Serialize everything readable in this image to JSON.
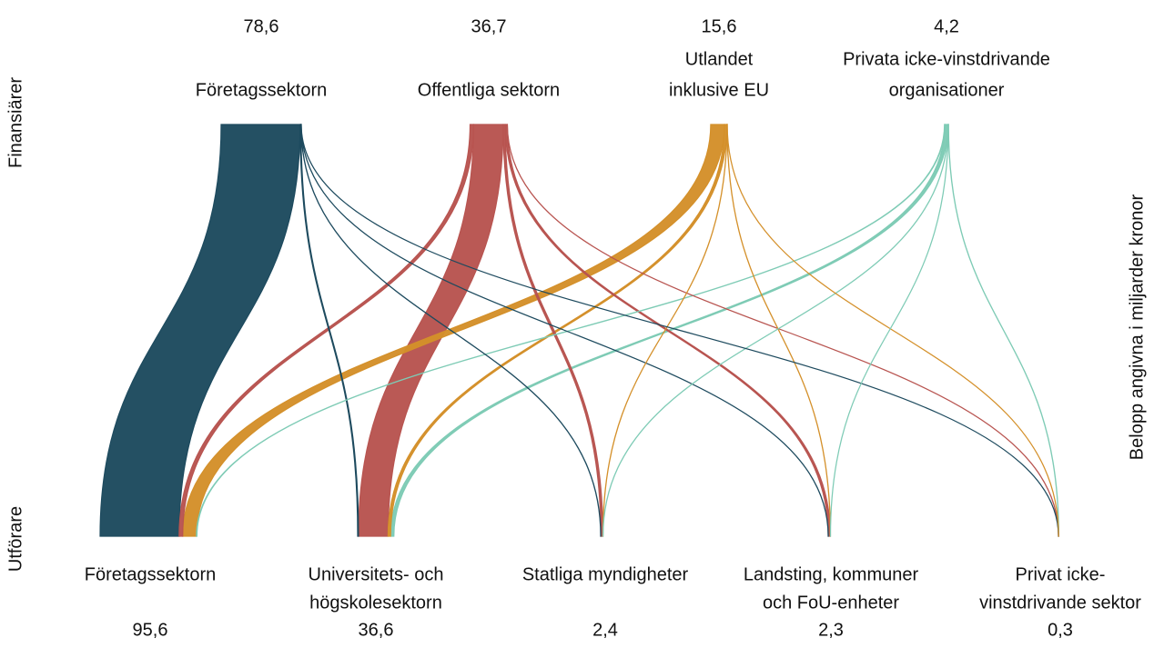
{
  "chart_data": {
    "type": "sankey",
    "left_label_top": "Finansiärer",
    "left_label_bottom": "Utförare",
    "right_label": "Belopp angivna i miljarder kronor",
    "sources": [
      {
        "name": [
          "Företagssektorn"
        ],
        "total": {
          "value": 78.6,
          "label": "78,6"
        },
        "color": "#1d4a5e"
      },
      {
        "name": [
          "Offentliga sektorn"
        ],
        "total": {
          "value": 36.7,
          "label": "36,7"
        },
        "color": "#b85450"
      },
      {
        "name": [
          "Utlandet",
          "inklusive EU"
        ],
        "total": {
          "value": 15.6,
          "label": "15,6"
        },
        "color": "#d4902a"
      },
      {
        "name": [
          "Privata icke-vinstdrivande",
          "organisationer"
        ],
        "total": {
          "value": 4.2,
          "label": "4,2"
        },
        "color": "#7ecbb5"
      }
    ],
    "targets": [
      {
        "name": [
          "Företagssektorn"
        ],
        "total": {
          "value": 95.6,
          "label": "95,6"
        }
      },
      {
        "name": [
          "Universitets- och",
          "högskolesektorn"
        ],
        "total": {
          "value": 36.6,
          "label": "36,6"
        }
      },
      {
        "name": [
          "Statliga myndigheter"
        ],
        "total": {
          "value": 2.4,
          "label": "2,4"
        }
      },
      {
        "name": [
          "Landsting, kommuner",
          "och FoU-enheter"
        ],
        "total": {
          "value": 2.3,
          "label": "2,3"
        }
      },
      {
        "name": [
          "Privat icke-",
          "vinstdrivande sektor"
        ],
        "total": {
          "value": 0.3,
          "label": "0,3"
        }
      }
    ],
    "flows": [
      {
        "source": 0,
        "target": 0,
        "value": 77.5
      },
      {
        "source": 0,
        "target": 1,
        "value": 0.8
      },
      {
        "source": 0,
        "target": 2,
        "value": 0.15
      },
      {
        "source": 0,
        "target": 3,
        "value": 0.1
      },
      {
        "source": 0,
        "target": 4,
        "value": 0.05
      },
      {
        "source": 1,
        "target": 0,
        "value": 3.5
      },
      {
        "source": 1,
        "target": 1,
        "value": 29
      },
      {
        "source": 1,
        "target": 2,
        "value": 2
      },
      {
        "source": 1,
        "target": 3,
        "value": 2
      },
      {
        "source": 1,
        "target": 4,
        "value": 0.1
      },
      {
        "source": 2,
        "target": 0,
        "value": 13.5
      },
      {
        "source": 2,
        "target": 1,
        "value": 2.5
      },
      {
        "source": 2,
        "target": 2,
        "value": 0.1
      },
      {
        "source": 2,
        "target": 3,
        "value": 0.1
      },
      {
        "source": 2,
        "target": 4,
        "value": 0.05
      },
      {
        "source": 3,
        "target": 0,
        "value": 0.5
      },
      {
        "source": 3,
        "target": 1,
        "value": 3.2
      },
      {
        "source": 3,
        "target": 2,
        "value": 0.1
      },
      {
        "source": 3,
        "target": 3,
        "value": 0.05
      },
      {
        "source": 3,
        "target": 4,
        "value": 0.15
      }
    ]
  }
}
